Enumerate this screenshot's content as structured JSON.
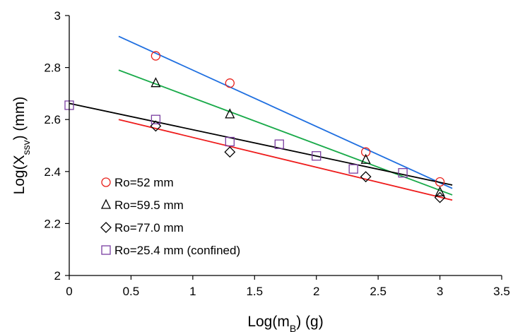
{
  "chart_data": {
    "type": "scatter",
    "xlabel": {
      "main": "Log(m",
      "sub": "B",
      "tail": ") (g)"
    },
    "ylabel": {
      "main": "Log(X",
      "sub": "ssv",
      "tail": ")   (mm)"
    },
    "xlim": [
      0,
      3.5
    ],
    "ylim": [
      2,
      3
    ],
    "xticks": [
      0,
      0.5,
      1,
      1.5,
      2,
      2.5,
      3,
      3.5
    ],
    "yticks": [
      2,
      2.2,
      2.4,
      2.6,
      2.8,
      3
    ],
    "xtick_labels": [
      "0",
      "0.5",
      "1",
      "1.5",
      "2",
      "2.5",
      "3",
      "3.5"
    ],
    "ytick_labels": [
      "2",
      "2.2",
      "2.4",
      "2.6",
      "2.8",
      "3"
    ],
    "grid": false,
    "legend_placement": "bottom-left",
    "series": [
      {
        "name": "Ro=52 mm",
        "marker": "circle",
        "marker_color": "#e8201a",
        "line_color": "#1f6fe0",
        "x": [
          0.7,
          1.3,
          2.4,
          3.0
        ],
        "y": [
          2.845,
          2.74,
          2.475,
          2.36
        ],
        "trend": {
          "x": [
            0.4,
            3.1
          ],
          "y": [
            2.92,
            2.335
          ]
        }
      },
      {
        "name": "Ro=59.5 mm",
        "marker": "triangle",
        "marker_color": "#000000",
        "line_color": "#1aaa4a",
        "x": [
          0.7,
          1.3,
          2.4,
          3.0
        ],
        "y": [
          2.74,
          2.62,
          2.445,
          2.32
        ],
        "trend": {
          "x": [
            0.4,
            3.1
          ],
          "y": [
            2.79,
            2.31
          ]
        }
      },
      {
        "name": "Ro=77.0 mm",
        "marker": "diamond",
        "marker_color": "#000000",
        "line_color": "#ee1c1c",
        "x": [
          0.7,
          1.3,
          2.4,
          3.0
        ],
        "y": [
          2.575,
          2.475,
          2.38,
          2.3
        ],
        "trend": {
          "x": [
            0.4,
            3.1
          ],
          "y": [
            2.6,
            2.29
          ]
        }
      },
      {
        "name": "Ro=25.4 mm (confined)",
        "marker": "square",
        "marker_color": "#7a3ea0",
        "line_color": "#000000",
        "x": [
          0.0,
          0.7,
          1.3,
          1.7,
          2.0,
          2.3,
          2.7
        ],
        "y": [
          2.655,
          2.6,
          2.515,
          2.505,
          2.46,
          2.41,
          2.395
        ],
        "trend": {
          "x": [
            0.0,
            3.1
          ],
          "y": [
            2.662,
            2.348
          ]
        }
      }
    ]
  }
}
